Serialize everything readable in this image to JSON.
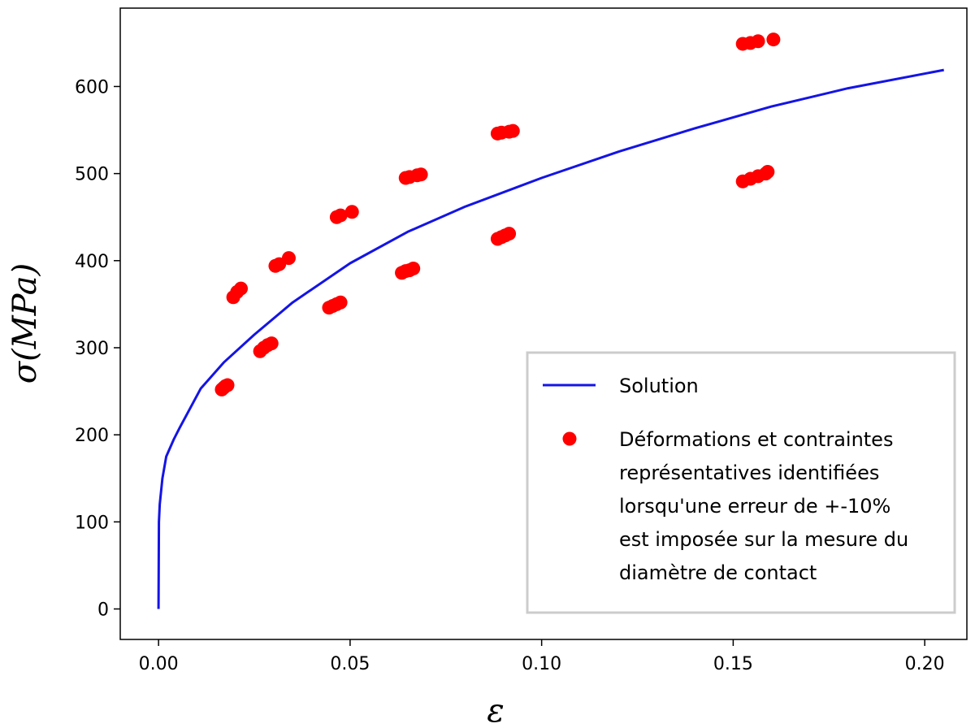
{
  "chart_data": {
    "type": "scatter",
    "xlabel": "ε",
    "ylabel": "σ(MPa)",
    "xlim": [
      -0.01,
      0.211
    ],
    "ylim": [
      -35,
      690
    ],
    "x_ticks": [
      "0.00",
      "0.05",
      "0.10",
      "0.15",
      "0.20"
    ],
    "y_ticks": [
      "0",
      "100",
      "200",
      "300",
      "400",
      "500",
      "600"
    ],
    "grid": false,
    "legend_position": "lower-right",
    "series": [
      {
        "name": "Solution",
        "kind": "line",
        "color": "#1414e6",
        "x": [
          0,
          0.0001,
          0.0003,
          0.001,
          0.002,
          0.004,
          0.0055,
          0.011,
          0.017,
          0.025,
          0.035,
          0.05,
          0.065,
          0.08,
          0.1,
          0.12,
          0.14,
          0.16,
          0.18,
          0.205
        ],
        "y": [
          0,
          100,
          120,
          150,
          175,
          195,
          208,
          253,
          283,
          315,
          352,
          397,
          433,
          462,
          495,
          525,
          552,
          577,
          598,
          619
        ]
      },
      {
        "name": "Déformations et contraintes représentatives identifiées lorsqu'une erreur de +-10% est imposée sur la mesure du diamètre de contact",
        "kind": "scatter",
        "color": "#ff0000",
        "x": [
          0.0165,
          0.017,
          0.0175,
          0.018,
          0.0265,
          0.0275,
          0.0285,
          0.0295,
          0.0445,
          0.0455,
          0.0465,
          0.0475,
          0.0635,
          0.0645,
          0.0655,
          0.0665,
          0.0885,
          0.0895,
          0.0905,
          0.0915,
          0.1525,
          0.1545,
          0.1565,
          0.1585,
          0.159,
          0.0195,
          0.0205,
          0.0215,
          0.0305,
          0.0315,
          0.034,
          0.0465,
          0.0475,
          0.0505,
          0.0645,
          0.0655,
          0.0675,
          0.0685,
          0.0885,
          0.0895,
          0.0915,
          0.0925,
          0.1525,
          0.1545,
          0.1565,
          0.1605
        ],
        "y": [
          252,
          254,
          256,
          257,
          296,
          300,
          303,
          305,
          346,
          348,
          350,
          352,
          386,
          388,
          389,
          391,
          425,
          427,
          429,
          431,
          491,
          494,
          497,
          500,
          502,
          358,
          364,
          368,
          394,
          396,
          403,
          450,
          452,
          456,
          495,
          496,
          498,
          499,
          546,
          547,
          548,
          549,
          649,
          650,
          652,
          654
        ]
      }
    ]
  },
  "legend": {
    "line_label": "Solution",
    "scatter_lines": [
      "Déformations et contraintes",
      "représentatives identifiées",
      "lorsqu'une erreur de +-10%",
      "est imposée sur la mesure du",
      "diamètre de contact"
    ]
  }
}
